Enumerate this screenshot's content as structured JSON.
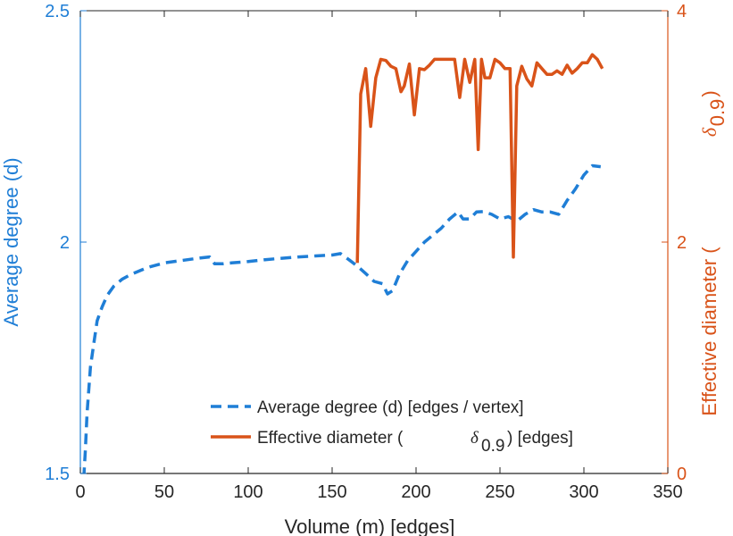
{
  "chart_data": {
    "type": "line",
    "colors": {
      "left": "#1f7ed6",
      "right": "#d95319",
      "axis_text": "#262626",
      "box": "#262626"
    },
    "x_axis": {
      "label": "Volume (m) [edges]",
      "range": [
        0,
        350
      ],
      "ticks": [
        "0",
        "50",
        "100",
        "150",
        "200",
        "250",
        "300",
        "350"
      ]
    },
    "y_left": {
      "label": "Average degree (d)",
      "range": [
        1.5,
        2.5
      ],
      "ticks": [
        {
          "value": 1.5,
          "text": "1.5"
        },
        {
          "value": 2.0,
          "text": "2"
        },
        {
          "value": 2.5,
          "text": "2.5"
        }
      ]
    },
    "y_right": {
      "label_prefix": "Effective diameter (",
      "label_symbol": "δ",
      "label_sub": "0.9",
      "label_suffix": ")",
      "range": [
        0,
        4
      ],
      "ticks": [
        {
          "value": 0,
          "text": "0"
        },
        {
          "value": 2,
          "text": "2"
        },
        {
          "value": 4,
          "text": "4"
        }
      ]
    },
    "legend": {
      "entry1": "Average degree (d) [edges / vertex]",
      "entry2_prefix": "Effective diameter (",
      "entry2_symbol": "δ",
      "entry2_sub": "0.9",
      "entry2_suffix": ") [edges]",
      "position": "bottom-right"
    },
    "series": [
      {
        "name": "Average degree (d) [edges / vertex]",
        "axis": "left",
        "style": "dashed",
        "x": [
          2,
          3,
          4,
          5,
          6,
          8,
          10,
          13,
          16,
          20,
          25,
          30,
          40,
          50,
          60,
          70,
          77,
          80,
          85,
          90,
          100,
          110,
          120,
          130,
          140,
          150,
          155,
          160,
          165,
          170,
          175,
          180,
          183,
          186,
          190,
          195,
          200,
          205,
          210,
          215,
          220,
          225,
          228,
          232,
          236,
          240,
          245,
          250,
          255,
          260,
          265,
          270,
          275,
          280,
          285,
          290,
          295,
          300,
          305,
          310
        ],
        "values": [
          1.49,
          1.55,
          1.63,
          1.68,
          1.73,
          1.78,
          1.83,
          1.86,
          1.885,
          1.905,
          1.92,
          1.93,
          1.945,
          1.955,
          1.96,
          1.965,
          1.968,
          1.953,
          1.953,
          1.955,
          1.958,
          1.962,
          1.965,
          1.968,
          1.97,
          1.972,
          1.975,
          1.962,
          1.948,
          1.932,
          1.915,
          1.91,
          1.888,
          1.895,
          1.93,
          1.96,
          1.98,
          2.0,
          2.015,
          2.03,
          2.05,
          2.065,
          2.05,
          2.05,
          2.065,
          2.066,
          2.06,
          2.05,
          2.055,
          2.045,
          2.06,
          2.07,
          2.065,
          2.065,
          2.06,
          2.09,
          2.115,
          2.145,
          2.165,
          2.163
        ]
      },
      {
        "name": "Effective diameter (δ0.9) [edges]",
        "axis": "right",
        "style": "solid",
        "x": [
          165,
          167,
          170,
          173,
          176,
          179,
          182,
          185,
          188,
          191,
          193,
          196,
          199,
          202,
          205,
          208,
          211,
          214,
          217,
          220,
          223,
          226,
          229,
          232,
          235,
          237,
          239,
          241,
          244,
          247,
          250,
          253,
          256,
          258,
          260,
          263,
          266,
          269,
          272,
          275,
          278,
          281,
          284,
          287,
          290,
          293,
          296,
          299,
          302,
          305,
          308,
          311
        ],
        "values": [
          1.82,
          3.28,
          3.5,
          3.0,
          3.42,
          3.58,
          3.57,
          3.52,
          3.5,
          3.3,
          3.35,
          3.54,
          3.1,
          3.5,
          3.49,
          3.53,
          3.58,
          3.58,
          3.58,
          3.58,
          3.58,
          3.25,
          3.58,
          3.38,
          3.58,
          2.8,
          3.58,
          3.42,
          3.42,
          3.58,
          3.55,
          3.5,
          3.5,
          1.87,
          3.35,
          3.52,
          3.41,
          3.35,
          3.55,
          3.5,
          3.45,
          3.45,
          3.48,
          3.45,
          3.53,
          3.46,
          3.5,
          3.55,
          3.55,
          3.62,
          3.58,
          3.5
        ]
      }
    ]
  }
}
